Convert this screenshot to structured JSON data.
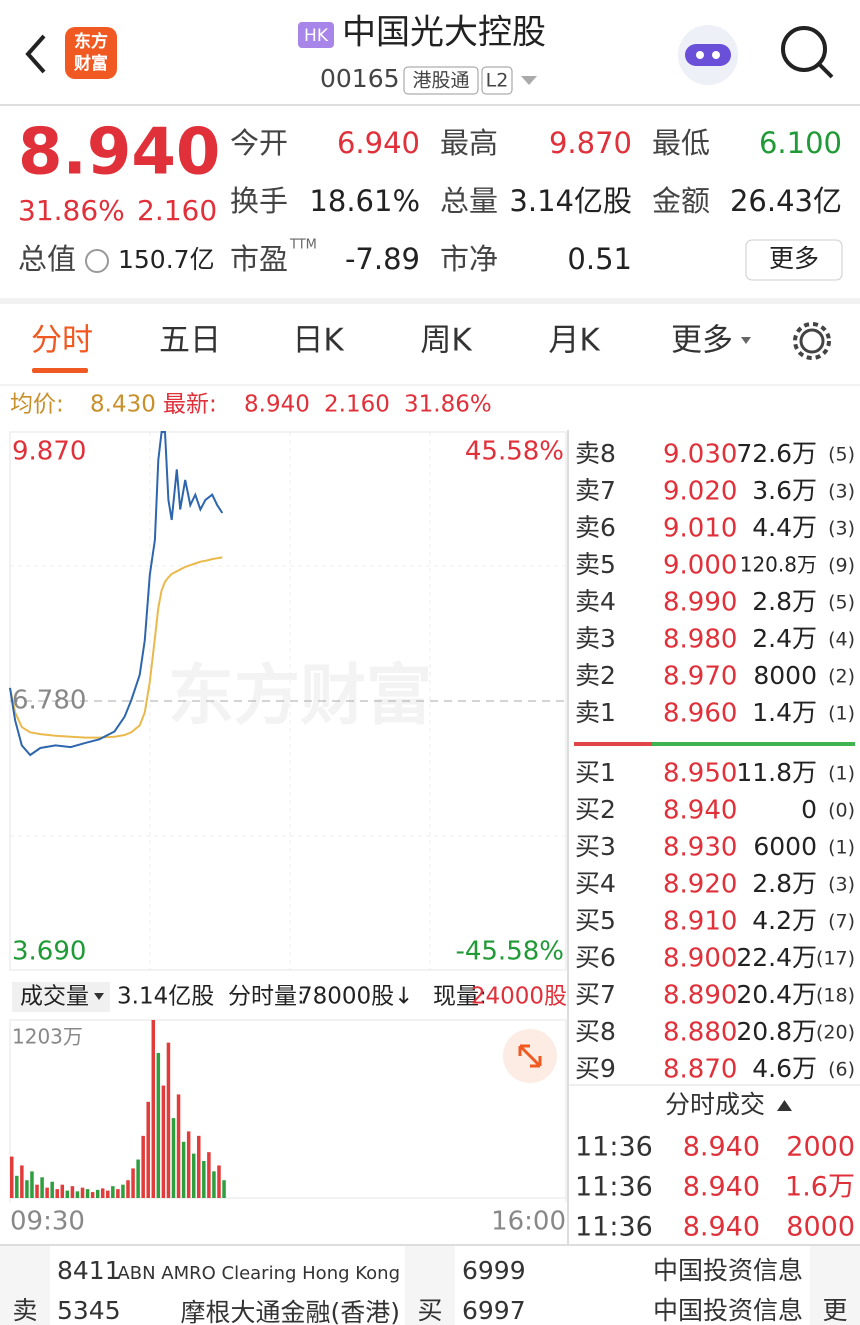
{
  "header": {
    "logo": [
      "东方",
      "财富"
    ],
    "market_badge": "HK",
    "title": "中国光大控股",
    "code": "00165",
    "tags": [
      "港股通",
      "L2"
    ]
  },
  "quote": {
    "price": "8.940",
    "change_pct": "31.86%",
    "change": "2.160",
    "stats": [
      {
        "label": "今开",
        "value": "6.940"
      },
      {
        "label": "最高",
        "value": "9.870"
      },
      {
        "label": "最低",
        "value": "6.100"
      },
      {
        "label": "换手",
        "value": "18.61%"
      },
      {
        "label": "总量",
        "value": "3.14亿股"
      },
      {
        "label": "金额",
        "value": "26.43亿"
      },
      {
        "label": "市盈",
        "sup": "TTM",
        "value": "-7.89"
      },
      {
        "label": "市净",
        "value": "0.51"
      }
    ],
    "total_value_label": "总值",
    "total_value": "150.7亿",
    "more": "更多"
  },
  "tabs": [
    "分时",
    "五日",
    "日K",
    "周K",
    "月K",
    "更多"
  ],
  "info": {
    "avg_label": "均价:",
    "avg": "8.430",
    "last_label": "最新:",
    "last": "8.940",
    "change": "2.160",
    "change_pct": "31.86%"
  },
  "watermark": "东方财富",
  "volume_bar": {
    "selector": "成交量",
    "total": "3.14亿股",
    "minute_label": "分时量:",
    "minute_value": "78000股↓",
    "current_label": "现量:",
    "current_value": "24000股"
  },
  "chart_data": [
    {
      "type": "line",
      "x": [
        0,
        3,
        7,
        12,
        18,
        27,
        36,
        45,
        53,
        62,
        68,
        72,
        77,
        80,
        83,
        86,
        88,
        90,
        92,
        94,
        96,
        99,
        101,
        104,
        107,
        110,
        113,
        116,
        120,
        123,
        126
      ],
      "xlim": [
        0,
        330
      ],
      "ylim": [
        3.69,
        9.87
      ],
      "yticks": [
        {
          "value": 9.87,
          "label": "9.870"
        },
        {
          "value": 6.78,
          "label": "6.780"
        },
        {
          "value": 3.69,
          "label": "3.690"
        }
      ],
      "y2lim": [
        -45.58,
        45.58
      ],
      "y2ticks": [
        {
          "value": 45.58,
          "label": "45.58%"
        },
        {
          "value": -45.58,
          "label": "-45.58%"
        }
      ],
      "series": [
        {
          "color": "#2d66ad",
          "values": [
            6.93,
            6.56,
            6.27,
            6.16,
            6.24,
            6.27,
            6.25,
            6.3,
            6.34,
            6.43,
            6.6,
            6.79,
            7.08,
            7.48,
            8.23,
            8.63,
            9.55,
            9.87,
            9.87,
            9.09,
            8.86,
            9.44,
            8.98,
            9.32,
            9.03,
            9.15,
            8.98,
            9.09,
            9.15,
            9.03,
            8.94
          ]
        },
        {
          "color": "#eab94c",
          "values": [
            6.93,
            6.65,
            6.48,
            6.42,
            6.4,
            6.38,
            6.37,
            6.36,
            6.36,
            6.37,
            6.39,
            6.42,
            6.5,
            6.65,
            7.0,
            7.5,
            7.85,
            8.05,
            8.15,
            8.2,
            8.24,
            8.27,
            8.29,
            8.32,
            8.34,
            8.36,
            8.38,
            8.39,
            8.41,
            8.42,
            8.43
          ]
        }
      ]
    },
    {
      "type": "bar",
      "x": [
        0,
        3,
        6,
        9,
        12,
        15,
        18,
        21,
        24,
        27,
        30,
        33,
        36,
        39,
        42,
        45,
        48,
        51,
        54,
        57,
        60,
        63,
        66,
        69,
        72,
        75,
        78,
        81,
        84,
        87,
        90,
        93,
        96,
        99,
        102,
        105,
        108,
        111,
        114,
        117,
        120,
        123,
        126
      ],
      "values": [
        280,
        150,
        220,
        120,
        180,
        90,
        140,
        70,
        110,
        60,
        90,
        50,
        80,
        45,
        70,
        60,
        40,
        55,
        65,
        50,
        80,
        60,
        90,
        120,
        200,
        260,
        420,
        650,
        1203,
        980,
        760,
        1050,
        540,
        700,
        380,
        450,
        300,
        420,
        250,
        310,
        180,
        220,
        120
      ],
      "colors": [
        "#e23b3b",
        "#2e9e3e",
        "#e23b3b",
        "#2e9e3e",
        "#2e9e3e",
        "#e23b3b",
        "#2e9e3e",
        "#e23b3b",
        "#2e9e3e",
        "#e23b3b",
        "#e23b3b",
        "#2e9e3e",
        "#e23b3b",
        "#2e9e3e",
        "#e23b3b",
        "#2e9e3e",
        "#e23b3b",
        "#2e9e3e",
        "#e23b3b",
        "#e23b3b",
        "#2e9e3e",
        "#e23b3b",
        "#2e9e3e",
        "#e23b3b",
        "#e23b3b",
        "#2e9e3e",
        "#e23b3b",
        "#e23b3b",
        "#e23b3b",
        "#2e9e3e",
        "#e23b3b",
        "#e23b3b",
        "#2e9e3e",
        "#e23b3b",
        "#2e9e3e",
        "#e23b3b",
        "#2e9e3e",
        "#e23b3b",
        "#2e9e3e",
        "#e23b3b",
        "#2e9e3e",
        "#e23b3b",
        "#2e9e3e"
      ],
      "xlim": [
        0,
        330
      ],
      "ylim": [
        0,
        1203
      ],
      "yticks": [
        {
          "value": 1203,
          "label": "1203万"
        }
      ],
      "xticks": [
        {
          "value": 0,
          "label": "09:30"
        },
        {
          "value": 330,
          "label": "16:00"
        }
      ]
    }
  ],
  "order_book": {
    "asks": [
      [
        "卖8",
        "9.030",
        "72.6万",
        "(5)"
      ],
      [
        "卖7",
        "9.020",
        "3.6万",
        "(3)"
      ],
      [
        "卖6",
        "9.010",
        "4.4万",
        "(3)"
      ],
      [
        "卖5",
        "9.000",
        "120.8万",
        "(9)"
      ],
      [
        "卖4",
        "8.990",
        "2.8万",
        "(5)"
      ],
      [
        "卖3",
        "8.980",
        "2.4万",
        "(4)"
      ],
      [
        "卖2",
        "8.970",
        "8000",
        "(2)"
      ],
      [
        "卖1",
        "8.960",
        "1.4万",
        "(1)"
      ]
    ],
    "bids": [
      [
        "买1",
        "8.950",
        "11.8万",
        "(1)"
      ],
      [
        "买2",
        "8.940",
        "0",
        "(0)"
      ],
      [
        "买3",
        "8.930",
        "6000",
        "(1)"
      ],
      [
        "买4",
        "8.920",
        "2.8万",
        "(3)"
      ],
      [
        "买5",
        "8.910",
        "4.2万",
        "(7)"
      ],
      [
        "买6",
        "8.900",
        "22.4万",
        "(17)"
      ],
      [
        "买7",
        "8.890",
        "20.4万",
        "(18)"
      ],
      [
        "买8",
        "8.880",
        "20.8万",
        "(20)"
      ],
      [
        "买9",
        "8.870",
        "4.6万",
        "(6)"
      ]
    ]
  },
  "ticks": {
    "title": "分时成交",
    "rows": [
      [
        "11:36",
        "8.940",
        "2000"
      ],
      [
        "11:36",
        "8.940",
        "1.6万"
      ],
      [
        "11:36",
        "8.940",
        "8000"
      ]
    ]
  },
  "brokers": {
    "sell_label": "卖",
    "sell": [
      [
        "8411",
        "ABN AMRO Clearing Hong Kong"
      ],
      [
        "5345",
        "摩根大通金融(香港)"
      ]
    ],
    "buy_label": "买",
    "buy": [
      [
        "6999",
        "中国投资信息"
      ],
      [
        "6997",
        "中国投资信息"
      ]
    ],
    "more": "更"
  }
}
